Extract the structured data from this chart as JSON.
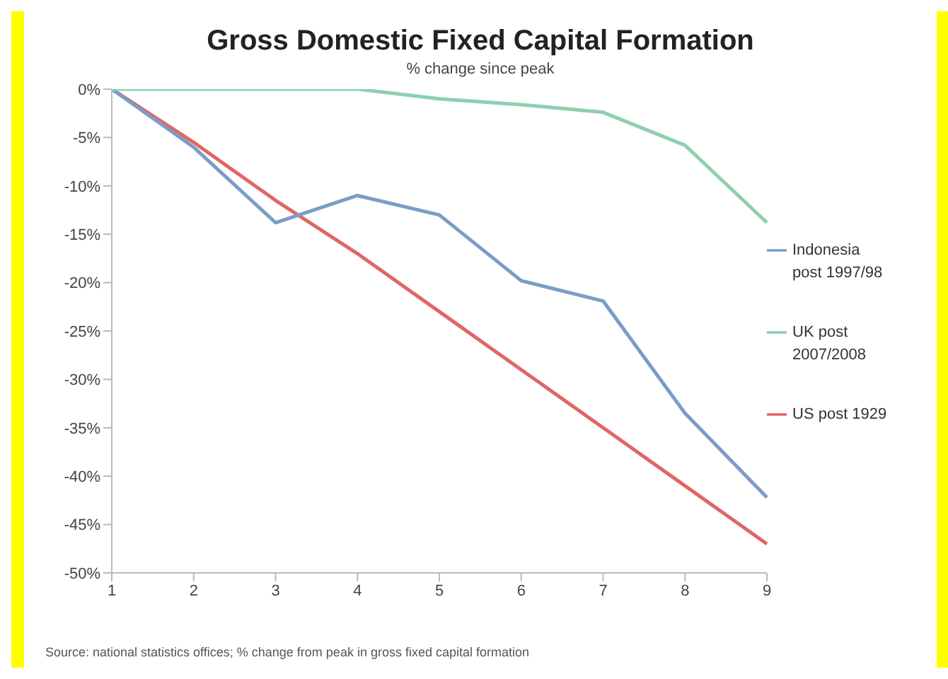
{
  "chart_data": {
    "type": "line",
    "title": "Gross Domestic Fixed Capital Formation",
    "subtitle": "% change since peak",
    "categories": [
      "1",
      "2",
      "3",
      "4",
      "5",
      "6",
      "7",
      "8",
      "9"
    ],
    "series": [
      {
        "name": "US post 1929",
        "color": "#e06666",
        "values": [
          0,
          -5.5,
          -11.5,
          -17,
          -23,
          -29,
          -35,
          -41,
          -47
        ]
      },
      {
        "name": "Indonesia post 1997/98",
        "color": "#7b9cc8",
        "values": [
          0,
          -6,
          -13.8,
          -11,
          -13,
          -19.8,
          -21.9,
          -33.5,
          -42.2
        ]
      },
      {
        "name": "UK post 2007/2008",
        "color": "#8fcfae",
        "values": [
          0,
          0,
          0,
          0,
          -1,
          -1.6,
          -2.4,
          -5.8,
          -13.8
        ]
      }
    ],
    "ylim": [
      -50,
      0
    ],
    "yticks": [
      {
        "value": 0,
        "label": "0%"
      },
      {
        "value": -5,
        "label": "-5%"
      },
      {
        "value": -10,
        "label": "-10%"
      },
      {
        "value": -15,
        "label": "-15%"
      },
      {
        "value": -20,
        "label": "-20%"
      },
      {
        "value": -25,
        "label": "-25%"
      },
      {
        "value": -30,
        "label": "-30%"
      },
      {
        "value": -35,
        "label": "-35%"
      },
      {
        "value": -40,
        "label": "-40%"
      },
      {
        "value": -45,
        "label": "-45%"
      },
      {
        "value": -50,
        "label": "-50%"
      }
    ],
    "grid": false,
    "legend": "right",
    "marker": "none",
    "line_style": "solid",
    "annotations": [
      "Source: national statistics offices; % change from peak in gross fixed capital formation"
    ]
  }
}
